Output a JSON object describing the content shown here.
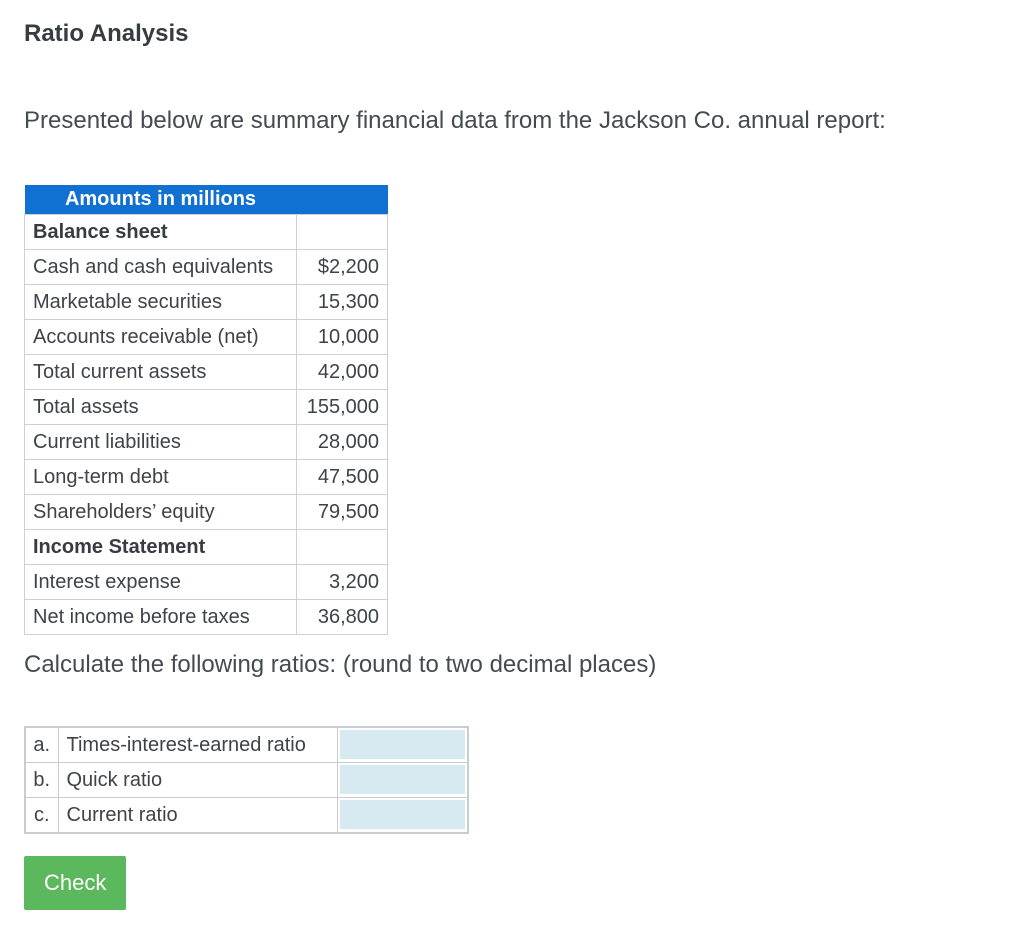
{
  "page": {
    "title": "Ratio Analysis",
    "intro": "Presented below are summary financial data from the Jackson Co. annual report:",
    "instruction": "Calculate the following ratios: (round to two decimal places)"
  },
  "financial_table": {
    "header": "Amounts in millions",
    "rows": [
      {
        "label": "Balance sheet",
        "value": ""
      },
      {
        "label": "Cash and cash equivalents",
        "value": "$2,200"
      },
      {
        "label": "Marketable securities",
        "value": "15,300"
      },
      {
        "label": "Accounts receivable (net)",
        "value": "10,000"
      },
      {
        "label": "Total current assets",
        "value": "42,000"
      },
      {
        "label": "Total assets",
        "value": "155,000"
      },
      {
        "label": "Current liabilities",
        "value": "28,000"
      },
      {
        "label": "Long-term debt",
        "value": "47,500"
      },
      {
        "label": "Shareholders’ equity",
        "value": "79,500"
      },
      {
        "label": "Income Statement",
        "value": ""
      },
      {
        "label": "Interest expense",
        "value": "3,200"
      },
      {
        "label": "Net income before taxes",
        "value": "36,800"
      }
    ]
  },
  "ratio_table": {
    "rows": [
      {
        "letter": "a.",
        "label": "Times-interest-earned ratio",
        "value": ""
      },
      {
        "letter": "b.",
        "label": "Quick ratio",
        "value": ""
      },
      {
        "letter": "c.",
        "label": "Current ratio",
        "value": ""
      }
    ]
  },
  "check_button": {
    "label": "Check"
  },
  "colors": {
    "header_blue": "#1171d2",
    "button_green": "#5cb85c",
    "input_fill_blue": "#d7e9f1",
    "table_border": "#ccd0d3",
    "text_dark": "#3d4349"
  }
}
